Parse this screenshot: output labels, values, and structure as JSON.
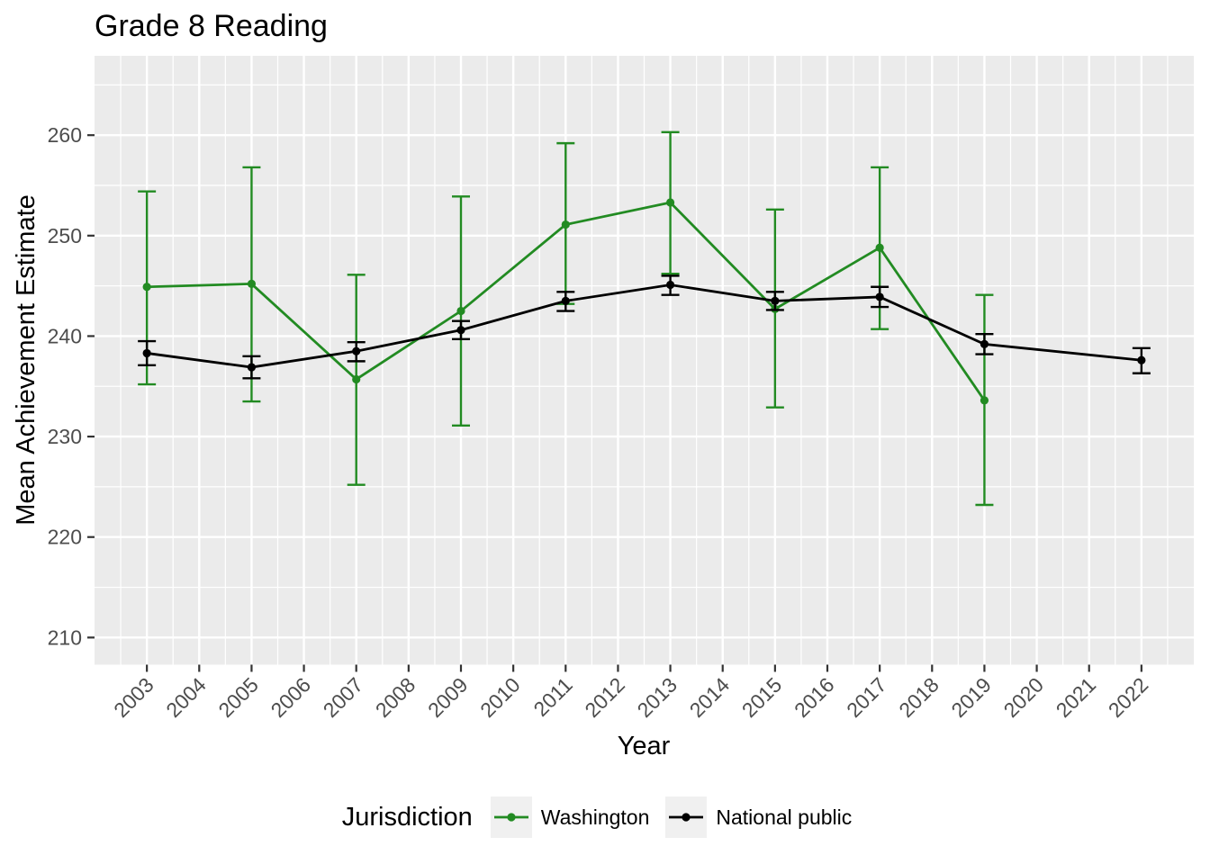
{
  "title": "Grade 8 Reading",
  "chart_data": {
    "type": "line",
    "title": "Grade 8 Reading",
    "xlabel": "Year",
    "ylabel": "Mean Achievement Estimate",
    "legend_title": "Jurisdiction",
    "legend_position": "bottom",
    "grid": true,
    "panel_bg": "#EBEBEB",
    "grid_color": "#FFFFFF",
    "tick_color": "#333333",
    "axis_text_color": "#4d4d4d",
    "xlim": [
      2002.0,
      2023.0
    ],
    "ylim": [
      207.3,
      267.9
    ],
    "x_ticks": [
      2003,
      2004,
      2005,
      2006,
      2007,
      2008,
      2009,
      2010,
      2011,
      2012,
      2013,
      2014,
      2015,
      2016,
      2017,
      2018,
      2019,
      2020,
      2021,
      2022
    ],
    "y_ticks": [
      210,
      220,
      230,
      240,
      250,
      260
    ],
    "y_minor_ticks": [
      215,
      225,
      235,
      245,
      255,
      265
    ],
    "x_minor_step": 0.5,
    "series": [
      {
        "name": "Washington",
        "color": "#228B22",
        "x": [
          2003,
          2005,
          2007,
          2009,
          2011,
          2013,
          2015,
          2017,
          2019
        ],
        "y": [
          244.9,
          245.2,
          235.7,
          242.5,
          251.1,
          253.3,
          242.7,
          248.8,
          233.6
        ],
        "ci_low": [
          235.2,
          233.5,
          225.2,
          231.1,
          243.2,
          246.2,
          232.9,
          240.7,
          223.2
        ],
        "ci_high": [
          254.4,
          256.8,
          246.1,
          253.9,
          259.2,
          260.3,
          252.6,
          256.8,
          244.1
        ]
      },
      {
        "name": "National public",
        "color": "#000000",
        "x": [
          2003,
          2005,
          2007,
          2009,
          2011,
          2013,
          2015,
          2017,
          2019,
          2022
        ],
        "y": [
          238.3,
          236.9,
          238.5,
          240.6,
          243.5,
          245.1,
          243.5,
          243.9,
          239.2,
          237.6
        ],
        "ci_low": [
          237.1,
          235.8,
          237.5,
          239.7,
          242.5,
          244.1,
          242.6,
          242.9,
          238.2,
          236.3
        ],
        "ci_high": [
          239.5,
          238.0,
          239.4,
          241.5,
          244.4,
          246.0,
          244.4,
          244.9,
          240.2,
          238.8
        ]
      }
    ]
  },
  "legend": {
    "title": "Jurisdiction",
    "items": [
      {
        "label": "Washington",
        "color": "#228B22"
      },
      {
        "label": "National public",
        "color": "#000000"
      }
    ]
  }
}
